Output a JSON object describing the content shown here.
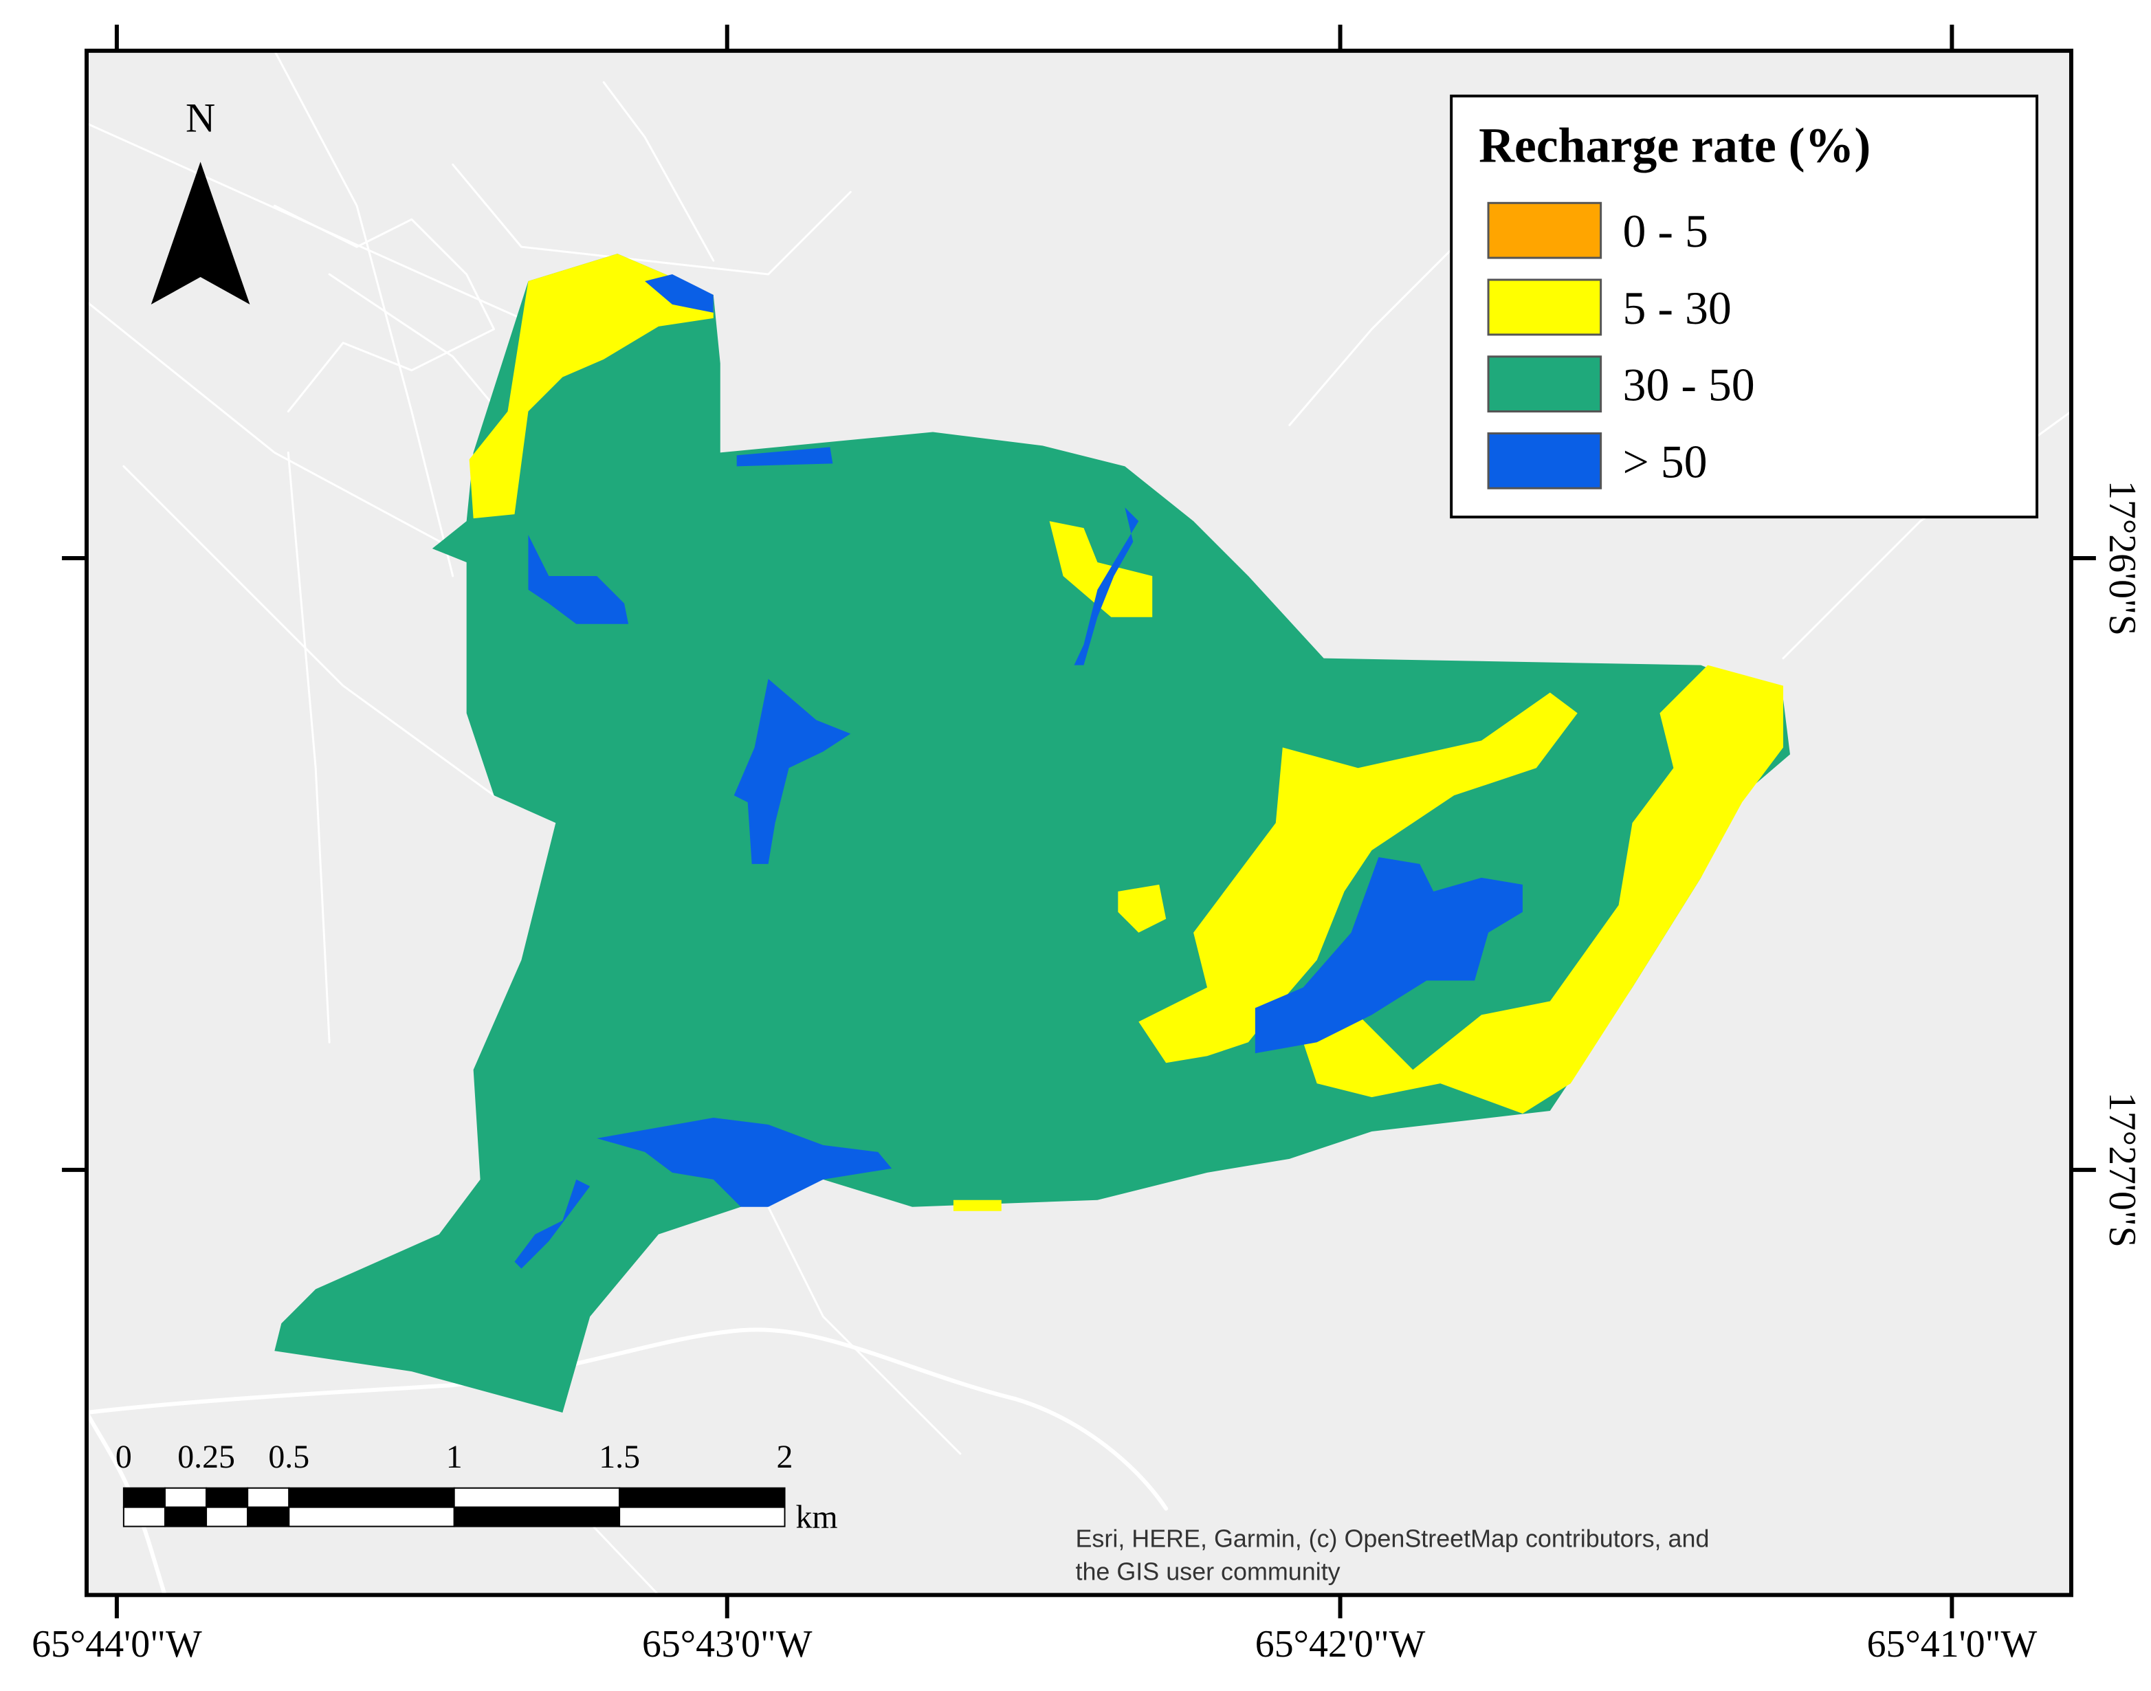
{
  "north_arrow": {
    "label": "N"
  },
  "legend": {
    "title": "Recharge rate (%)",
    "items": [
      {
        "label": "0 - 5",
        "color": "#ffa500"
      },
      {
        "label": "5 - 30",
        "color": "#ffff00"
      },
      {
        "label": "30 - 50",
        "color": "#1fa97b"
      },
      {
        "label": "> 50",
        "color": "#0a5fe6"
      }
    ]
  },
  "axes": {
    "longitude_labels": [
      "65°44'0\"W",
      "65°43'0\"W",
      "65°42'0\"W",
      "65°41'0\"W"
    ],
    "latitude_labels": [
      "17°26'0\"S",
      "17°27'0\"S"
    ]
  },
  "scale_bar": {
    "labels": [
      0,
      0.25,
      0.5,
      1,
      1.5,
      2
    ],
    "unit": "km"
  },
  "attribution": [
    "Esri, HERE, Garmin, (c) OpenStreetMap contributors, and",
    "the GIS user community"
  ]
}
